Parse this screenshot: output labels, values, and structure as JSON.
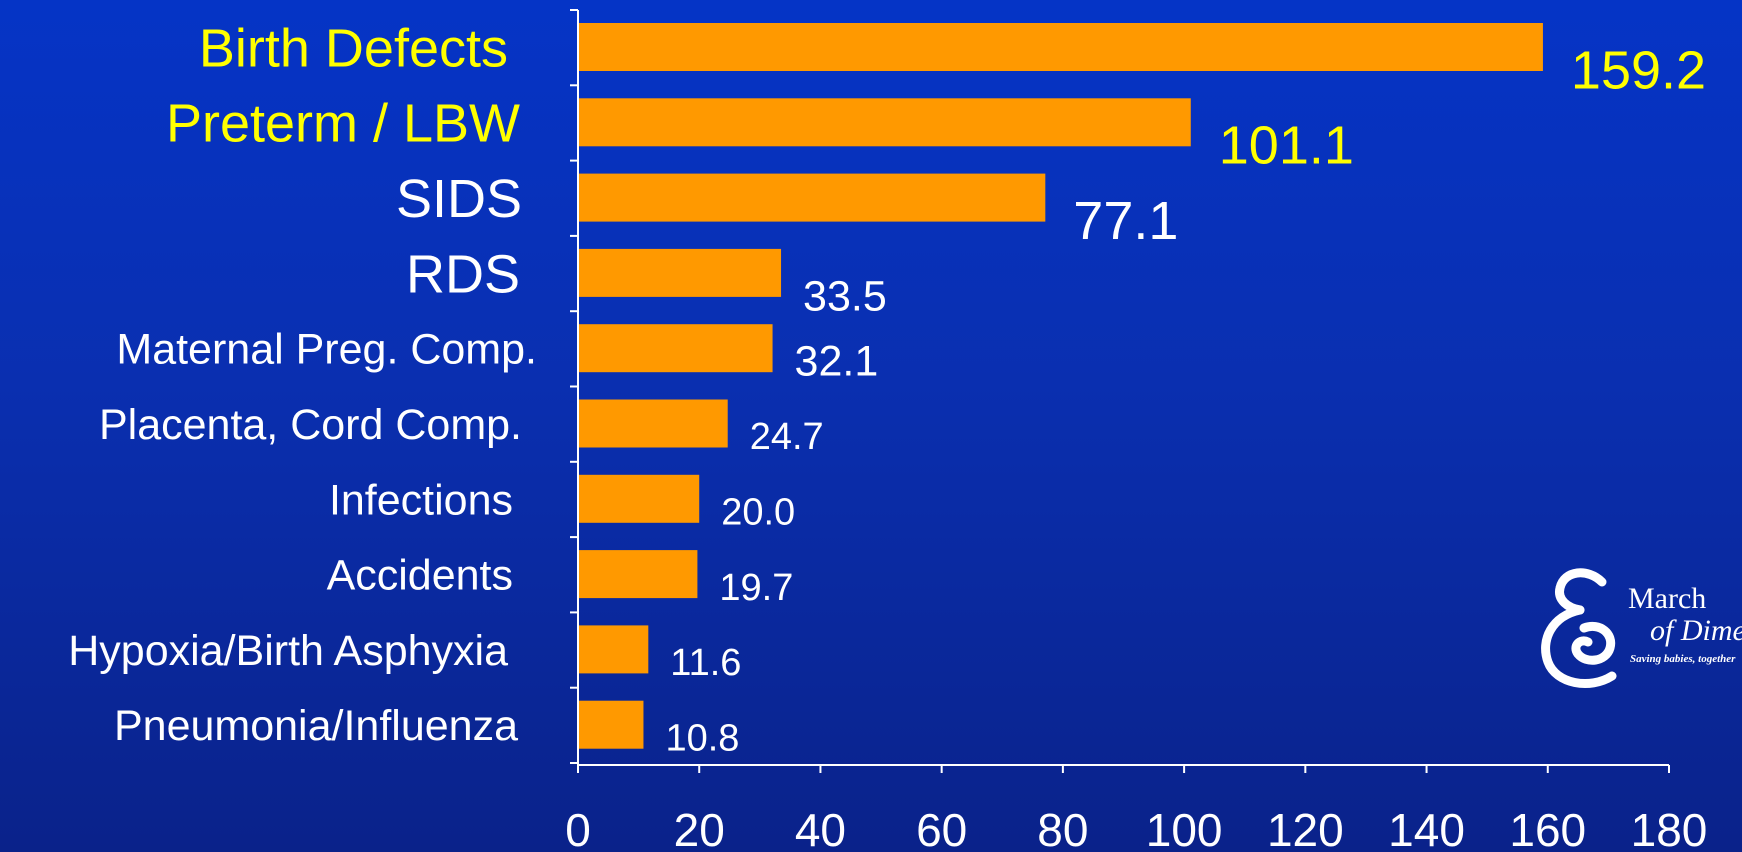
{
  "chart_data": {
    "type": "bar",
    "orientation": "horizontal",
    "categories": [
      "Birth Defects",
      "Preterm / LBW",
      "SIDS",
      "RDS",
      "Maternal Preg. Comp.",
      "Placenta, Cord Comp.",
      "Infections",
      "Accidents",
      "Hypoxia/Birth Asphyxia",
      "Pneumonia/Influenza"
    ],
    "values": [
      159.2,
      101.1,
      77.1,
      33.5,
      32.1,
      24.7,
      20.0,
      19.7,
      11.6,
      10.8
    ],
    "value_labels": [
      "159.2",
      "101.1",
      "77.1",
      "33.5",
      "32.1",
      "24.7",
      "20.0",
      "19.7",
      "11.6",
      "10.8"
    ],
    "xlim": [
      0,
      180
    ],
    "xticks": [
      "0",
      "20",
      "40",
      "60",
      "80",
      "100",
      "120",
      "140",
      "160",
      "180"
    ],
    "grid": false,
    "bar_color": "#ff9900",
    "highlight_color": "#ffff00",
    "text_color": "#ffffff",
    "highlighted_categories": [
      "Birth Defects",
      "Preterm / LBW"
    ]
  },
  "logo": {
    "line1": "March",
    "line2": "of Dimes",
    "tagline": "Saving babies, together"
  }
}
